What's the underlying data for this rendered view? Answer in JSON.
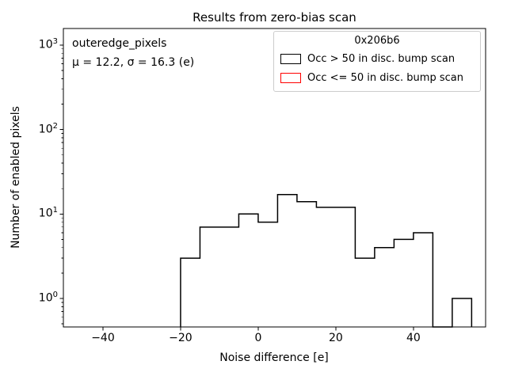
{
  "title": "Results from zero-bias scan",
  "annotation": {
    "dataset": "outeredge_pixels",
    "stats": "μ = 12.2, σ = 16.3 (e)"
  },
  "legend": {
    "title": "0x206b6",
    "entries": [
      {
        "label": "Occ > 50 in disc. bump scan",
        "color": "#000000"
      },
      {
        "label": "Occ <= 50 in disc. bump scan",
        "color": "#ff0000"
      }
    ]
  },
  "axes": {
    "xlabel": "Noise difference [e]",
    "ylabel": "Number of enabled pixels"
  },
  "chart_data": {
    "type": "bar",
    "subtype": "step_histogram",
    "title": "Results from zero-bias scan",
    "xlabel": "Noise difference [e]",
    "ylabel": "Number of enabled pixels",
    "yscale": "log",
    "grid": false,
    "legend_position": "upper right",
    "xlim": [
      -50.2,
      58.6
    ],
    "ylim": [
      0.46,
      1570
    ],
    "x_ticks": [
      -40,
      -20,
      0,
      20,
      40
    ],
    "y_tick_exponents": [
      0,
      1,
      2,
      3
    ],
    "bin_edges": [
      -20,
      -15,
      -10,
      -5,
      0,
      5,
      10,
      15,
      20,
      25,
      30,
      35,
      40,
      45,
      50,
      55
    ],
    "series": [
      {
        "name": "Occ > 50 in disc. bump scan",
        "color": "#000000",
        "counts": [
          3,
          7,
          7,
          10,
          8,
          17,
          14,
          12,
          12,
          3,
          4,
          5,
          6,
          0,
          1
        ]
      },
      {
        "name": "Occ <= 50 in disc. bump scan",
        "color": "#ff0000",
        "counts": []
      }
    ]
  }
}
